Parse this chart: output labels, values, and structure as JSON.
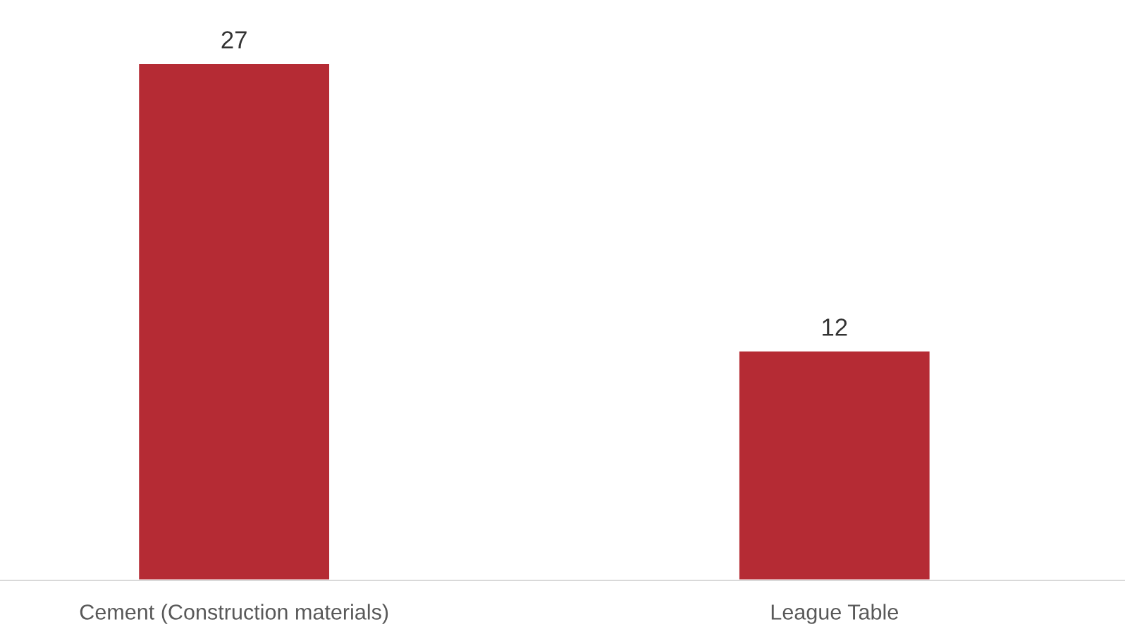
{
  "chart_data": {
    "type": "bar",
    "categories": [
      "Cement (Construction materials)",
      "League Table"
    ],
    "values": [
      27,
      12
    ],
    "color": "#b52b34",
    "data_labels": true
  }
}
